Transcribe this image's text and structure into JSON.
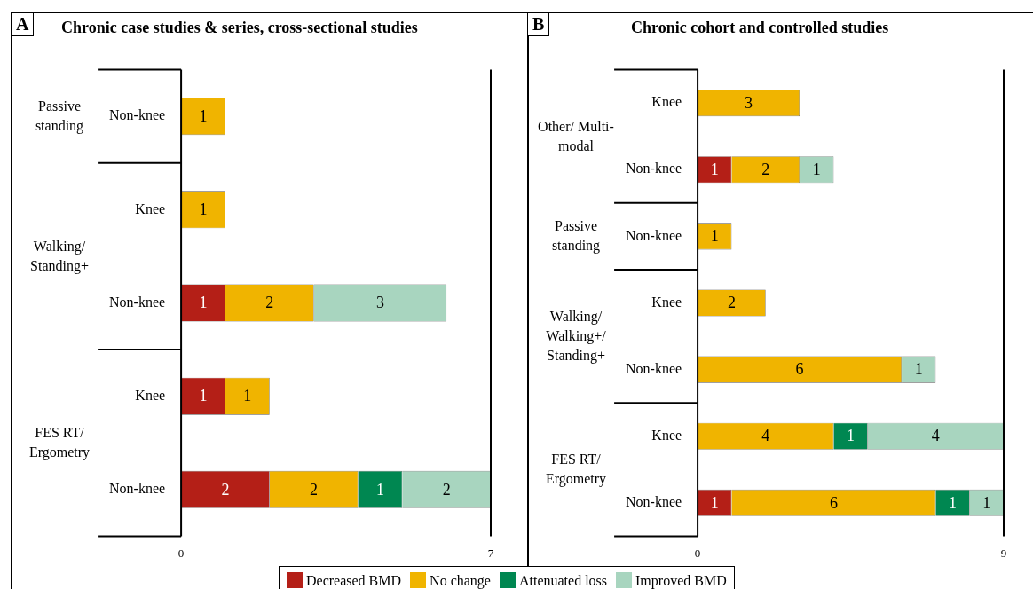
{
  "chart_data": [
    {
      "type": "bar",
      "orientation": "horizontal",
      "stacked": true,
      "title": "Chronic case studies & series, cross-sectional studies",
      "categories": [
        "Non-knee",
        "Knee",
        "Non-knee",
        "Knee",
        "Non-knee"
      ],
      "series": [
        {
          "name": "Decreased BMD",
          "color": "#b41f17",
          "values": [
            null,
            null,
            1,
            1,
            2
          ]
        },
        {
          "name": "No change",
          "color": "#f0b400",
          "values": [
            1,
            1,
            2,
            1,
            2
          ]
        },
        {
          "name": "Attenuated loss",
          "color": "#008751",
          "values": [
            null,
            null,
            null,
            null,
            1
          ]
        },
        {
          "name": "Improved BMD",
          "color": "#a8d5bf",
          "values": [
            null,
            null,
            3,
            null,
            2
          ]
        }
      ],
      "xlim": [
        0,
        7
      ],
      "xticks": [
        0,
        7
      ],
      "data_labels": true,
      "legend": "bottom",
      "annotations": [
        "A",
        "Passive standing",
        "Walking/ Standing+",
        "FES RT/ Ergometry"
      ]
    },
    {
      "type": "bar",
      "orientation": "horizontal",
      "stacked": true,
      "title": "Chronic cohort and controlled studies",
      "categories": [
        "Knee",
        "Non-knee",
        "Non-knee",
        "Knee",
        "Non-knee",
        "Knee",
        "Non-knee"
      ],
      "series": [
        {
          "name": "Decreased BMD",
          "color": "#b41f17",
          "values": [
            null,
            1,
            null,
            null,
            null,
            null,
            1
          ]
        },
        {
          "name": "No change",
          "color": "#f0b400",
          "values": [
            3,
            2,
            1,
            2,
            6,
            4,
            6
          ]
        },
        {
          "name": "Attenuated loss",
          "color": "#008751",
          "values": [
            null,
            null,
            null,
            null,
            null,
            1,
            1
          ]
        },
        {
          "name": "Improved BMD",
          "color": "#a8d5bf",
          "values": [
            null,
            1,
            null,
            null,
            1,
            4,
            1
          ]
        }
      ],
      "xlim": [
        0,
        9
      ],
      "xticks": [
        0,
        9
      ],
      "data_labels": true,
      "legend": "bottom",
      "annotations": [
        "B",
        "Other/ Multi-modal",
        "Passive standing",
        "Walking/ Walking+/ Standing+",
        "FES RT/ Ergometry"
      ]
    }
  ]
}
